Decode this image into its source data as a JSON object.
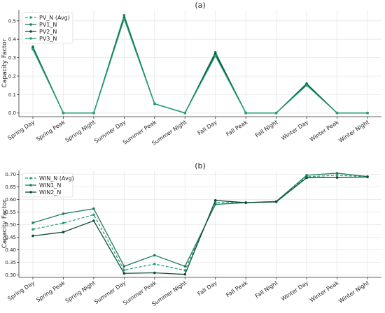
{
  "categories": [
    "Spring Day",
    "Spring Peak",
    "Spring Night",
    "Summer Day",
    "Summer Peak",
    "Summer Night",
    "Fall Day",
    "Fall Peak",
    "Fall Night",
    "Winter Day",
    "Winter Peak",
    "Winter Night"
  ],
  "chart_data": [
    {
      "type": "line",
      "title": "(a)",
      "ylabel": "Capacity Factor",
      "xlabel": "",
      "ylim": [
        -0.02,
        0.56
      ],
      "yticks": [
        0.0,
        0.1,
        0.2,
        0.3,
        0.4,
        0.5
      ],
      "ytick_labels": [
        "0.0",
        "0.1",
        "0.2",
        "0.3",
        "0.4",
        "0.5"
      ],
      "grid": true,
      "legend_position": "top-left",
      "categories": [
        "Spring Day",
        "Spring Peak",
        "Spring Night",
        "Summer Day",
        "Summer Peak",
        "Summer Night",
        "Fall Day",
        "Fall Peak",
        "Fall Night",
        "Winter Day",
        "Winter Peak",
        "Winter Night"
      ],
      "series": [
        {
          "name": "PV_N (Avg)",
          "color": "#26a17b",
          "dashed": true,
          "values": [
            0.355,
            0.0,
            0.0,
            0.52,
            0.05,
            0.0,
            0.32,
            0.0,
            0.0,
            0.155,
            0.0,
            0.0
          ]
        },
        {
          "name": "PV1_N",
          "color": "#1e7d5c",
          "dashed": false,
          "values": [
            0.36,
            0.0,
            0.0,
            0.53,
            0.05,
            0.0,
            0.33,
            0.0,
            0.0,
            0.16,
            0.0,
            0.0
          ]
        },
        {
          "name": "PV2_N",
          "color": "#124a3a",
          "dashed": false,
          "values": [
            0.35,
            0.0,
            0.0,
            0.515,
            0.05,
            0.0,
            0.32,
            0.0,
            0.0,
            0.155,
            0.0,
            0.0
          ]
        },
        {
          "name": "PV3_N",
          "color": "#1fa37a",
          "dashed": false,
          "values": [
            0.345,
            0.0,
            0.0,
            0.51,
            0.05,
            0.0,
            0.31,
            0.0,
            0.0,
            0.15,
            0.0,
            0.0
          ]
        }
      ]
    },
    {
      "type": "line",
      "title": "(b)",
      "ylabel": "Capacity Factor",
      "xlabel": "",
      "ylim": [
        0.29,
        0.715
      ],
      "yticks": [
        0.3,
        0.35,
        0.4,
        0.45,
        0.5,
        0.55,
        0.6,
        0.65,
        0.7
      ],
      "ytick_labels": [
        "0.30",
        "0.35",
        "0.40",
        "0.45",
        "0.50",
        "0.55",
        "0.60",
        "0.65",
        "0.70"
      ],
      "grid": true,
      "legend_position": "top-left",
      "categories": [
        "Spring Day",
        "Spring Peak",
        "Spring Night",
        "Summer Day",
        "Summer Peak",
        "Summer Night",
        "Fall Day",
        "Fall Peak",
        "Fall Night",
        "Winter Day",
        "Winter Peak",
        "Winter Night"
      ],
      "series": [
        {
          "name": "WIN_N (Avg)",
          "color": "#26a17b",
          "dashed": true,
          "values": [
            0.481,
            0.506,
            0.539,
            0.319,
            0.343,
            0.318,
            0.587,
            0.587,
            0.591,
            0.69,
            0.696,
            0.69
          ]
        },
        {
          "name": "WIN1_N",
          "color": "#1e7d5c",
          "dashed": false,
          "values": [
            0.507,
            0.543,
            0.563,
            0.334,
            0.378,
            0.334,
            0.58,
            0.587,
            0.592,
            0.696,
            0.704,
            0.691
          ]
        },
        {
          "name": "WIN2_N",
          "color": "#124a3a",
          "dashed": false,
          "values": [
            0.455,
            0.47,
            0.515,
            0.306,
            0.308,
            0.302,
            0.596,
            0.587,
            0.59,
            0.686,
            0.687,
            0.689
          ]
        }
      ]
    }
  ]
}
